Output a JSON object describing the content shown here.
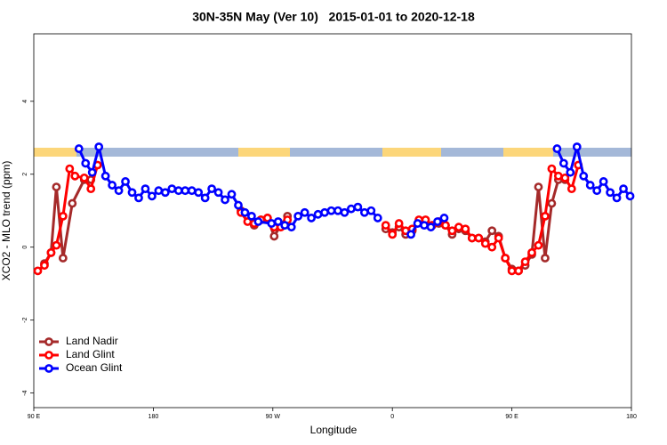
{
  "chart_data": {
    "type": "line",
    "title": "30N-35N May (Ver 10)   2015-01-01 to 2020-12-18",
    "xlabel": "Longitude",
    "ylabel": "XCO2 - MLO trend (ppm)",
    "xlim": [
      90,
      540
    ],
    "xticks": [
      {
        "value": 90,
        "label": "90 E"
      },
      180,
      {
        "value": 270,
        "label": "90 W"
      },
      {
        "value": 360,
        "label": "0"
      },
      {
        "value": 450,
        "label": "90 E"
      },
      180
    ],
    "ylim": [
      -4.4,
      5.85
    ],
    "yticks": [
      -4,
      -2,
      0,
      2,
      4
    ],
    "legend": "bottom-left",
    "series": [
      {
        "name": "Land Nadir",
        "color": "#a52a2a",
        "x": [
          98,
          103,
          107,
          112,
          119,
          128,
          133,
          190,
          246,
          251,
          256,
          261,
          266,
          271,
          276,
          281,
          320,
          355,
          360,
          365,
          370,
          375,
          380,
          385,
          390,
          395,
          400,
          405,
          410,
          415,
          420,
          425,
          430,
          435,
          440,
          445,
          450,
          455,
          460,
          465,
          470,
          475,
          480,
          485,
          490
        ],
        "values": [
          -0.45,
          -0.15,
          1.65,
          -0.3,
          1.2,
          1.85,
          1.85,
          null,
          1.0,
          0.85,
          0.6,
          0.75,
          0.8,
          0.3,
          0.6,
          0.85,
          null,
          0.5,
          0.4,
          0.55,
          0.35,
          0.45,
          0.7,
          0.65,
          0.6,
          0.65,
          0.6,
          0.35,
          0.5,
          0.45,
          0.25,
          0.25,
          0.15,
          0.45,
          0.3,
          -0.3,
          -0.6,
          -0.65,
          -0.5,
          -0.2,
          1.65,
          -0.3,
          1.2,
          1.85,
          1.85
        ]
      },
      {
        "name": "Land Glint",
        "color": "#ff0000",
        "x": [
          93,
          98,
          103,
          107,
          112,
          117,
          121,
          128,
          133,
          138,
          190,
          246,
          251,
          256,
          261,
          266,
          271,
          276,
          281,
          320,
          355,
          360,
          365,
          370,
          375,
          380,
          385,
          390,
          395,
          400,
          405,
          410,
          415,
          420,
          425,
          430,
          435,
          440,
          445,
          450,
          455,
          460,
          465,
          470,
          475,
          480,
          485,
          490,
          495,
          500
        ],
        "values": [
          -0.65,
          -0.5,
          -0.15,
          0.05,
          0.85,
          2.15,
          1.95,
          1.9,
          1.6,
          2.25,
          null,
          0.95,
          0.7,
          0.65,
          0.75,
          0.8,
          0.55,
          0.55,
          0.75,
          null,
          0.6,
          0.35,
          0.65,
          0.45,
          0.5,
          0.75,
          0.75,
          0.6,
          0.7,
          0.6,
          0.45,
          0.55,
          0.5,
          0.25,
          0.25,
          0.1,
          0.0,
          0.25,
          -0.3,
          -0.65,
          -0.65,
          -0.4,
          -0.15,
          0.05,
          0.85,
          2.15,
          1.95,
          1.9,
          1.6,
          2.25
        ]
      },
      {
        "name": "Ocean Glint",
        "color": "#0000ff",
        "x": [
          124,
          129,
          134,
          139,
          144,
          149,
          154,
          159,
          164,
          169,
          174,
          179,
          184,
          189,
          194,
          199,
          204,
          209,
          214,
          219,
          224,
          229,
          234,
          239,
          244,
          249,
          254,
          259,
          269,
          274,
          279,
          284,
          289,
          294,
          299,
          304,
          309,
          314,
          319,
          324,
          329,
          334,
          339,
          344,
          349,
          360,
          374,
          379,
          384,
          389,
          394,
          399,
          440,
          484,
          489,
          494,
          499,
          504,
          509,
          514,
          519,
          524,
          529,
          534,
          539
        ],
        "values": [
          2.7,
          2.3,
          2.05,
          2.75,
          1.95,
          1.7,
          1.55,
          1.8,
          1.5,
          1.35,
          1.6,
          1.4,
          1.55,
          1.5,
          1.6,
          1.55,
          1.55,
          1.55,
          1.5,
          1.35,
          1.6,
          1.5,
          1.3,
          1.45,
          1.15,
          0.95,
          0.85,
          0.7,
          0.65,
          0.7,
          0.6,
          0.55,
          0.85,
          0.95,
          0.8,
          0.9,
          0.95,
          1.0,
          1.0,
          0.95,
          1.05,
          1.1,
          0.95,
          1.0,
          0.8,
          null,
          0.35,
          0.65,
          0.6,
          0.55,
          0.7,
          0.8,
          null,
          2.7,
          2.3,
          2.05,
          2.75,
          1.95,
          1.7,
          1.55,
          1.8,
          1.5,
          1.35,
          1.6,
          1.4
        ]
      }
    ]
  }
}
